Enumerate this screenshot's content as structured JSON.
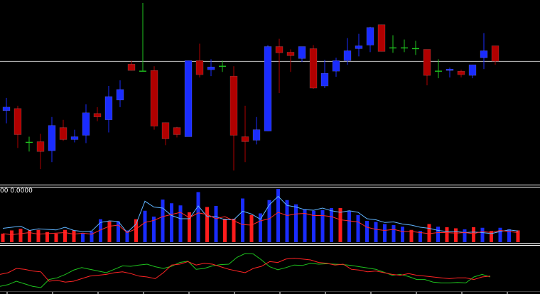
{
  "colors": {
    "background": "#000000",
    "bull": "#1a2cff",
    "bear": "#b00000",
    "doji": "#1fc41f",
    "bid_line": "#c8c8c8",
    "separator": "#ffffff",
    "hist_up": "#1a2cff",
    "hist_down": "#ff1c1c",
    "line_blue": "#5fb4ff",
    "line_red": "#ff2a2a",
    "osc_green": "#1ec21e",
    "osc_red": "#ff2424",
    "tick": "#ffffff"
  },
  "indicator": {
    "label": "00 0.0000"
  },
  "chart_data": [
    {
      "type": "candlestick",
      "price_range": [
        0,
        260
      ],
      "bid_line": 173,
      "candles": [
        {
          "o": 103,
          "h": 121,
          "l": 85,
          "c": 108,
          "dir": "bull"
        },
        {
          "o": 106,
          "h": 110,
          "l": 50,
          "c": 69,
          "dir": "bear"
        },
        {
          "o": 58,
          "h": 66,
          "l": 45,
          "c": 58,
          "dir": "doji"
        },
        {
          "o": 59,
          "h": 70,
          "l": 20,
          "c": 45,
          "dir": "bear"
        },
        {
          "o": 46,
          "h": 94,
          "l": 30,
          "c": 82,
          "dir": "bull"
        },
        {
          "o": 79,
          "h": 90,
          "l": 60,
          "c": 62,
          "dir": "bear"
        },
        {
          "o": 62,
          "h": 76,
          "l": 58,
          "c": 66,
          "dir": "bull"
        },
        {
          "o": 68,
          "h": 112,
          "l": 57,
          "c": 100,
          "dir": "bull"
        },
        {
          "o": 94,
          "h": 108,
          "l": 88,
          "c": 99,
          "dir": "bear"
        },
        {
          "o": 90,
          "h": 138,
          "l": 72,
          "c": 123,
          "dir": "bull"
        },
        {
          "o": 118,
          "h": 146,
          "l": 108,
          "c": 133,
          "dir": "bull"
        },
        {
          "o": 169,
          "h": 174,
          "l": 160,
          "c": 160,
          "dir": "bear"
        },
        {
          "o": 159,
          "h": 256,
          "l": 159,
          "c": 159,
          "dir": "doji"
        },
        {
          "o": 160,
          "h": 166,
          "l": 76,
          "c": 81,
          "dir": "bear"
        },
        {
          "o": 86,
          "h": 86,
          "l": 54,
          "c": 63,
          "dir": "bear"
        },
        {
          "o": 79,
          "h": 80,
          "l": 65,
          "c": 69,
          "dir": "bear"
        },
        {
          "o": 66,
          "h": 174,
          "l": 66,
          "c": 174,
          "dir": "bull"
        },
        {
          "o": 174,
          "h": 198,
          "l": 150,
          "c": 154,
          "dir": "bear"
        },
        {
          "o": 161,
          "h": 176,
          "l": 152,
          "c": 165,
          "dir": "bull"
        },
        {
          "o": 166,
          "h": 174,
          "l": 158,
          "c": 166,
          "dir": "doji"
        },
        {
          "o": 152,
          "h": 166,
          "l": 18,
          "c": 68,
          "dir": "bear"
        },
        {
          "o": 66,
          "h": 110,
          "l": 30,
          "c": 59,
          "dir": "bear"
        },
        {
          "o": 61,
          "h": 94,
          "l": 55,
          "c": 76,
          "dir": "bull"
        },
        {
          "o": 74,
          "h": 196,
          "l": 74,
          "c": 194,
          "dir": "bull"
        },
        {
          "o": 194,
          "h": 205,
          "l": 128,
          "c": 185,
          "dir": "bear"
        },
        {
          "o": 186,
          "h": 190,
          "l": 158,
          "c": 181,
          "dir": "bear"
        },
        {
          "o": 177,
          "h": 194,
          "l": 172,
          "c": 194,
          "dir": "bull"
        },
        {
          "o": 191,
          "h": 196,
          "l": 134,
          "c": 135,
          "dir": "bear"
        },
        {
          "o": 138,
          "h": 175,
          "l": 135,
          "c": 156,
          "dir": "bull"
        },
        {
          "o": 159,
          "h": 178,
          "l": 151,
          "c": 174,
          "dir": "bull"
        },
        {
          "o": 174,
          "h": 206,
          "l": 168,
          "c": 188,
          "dir": "bull"
        },
        {
          "o": 191,
          "h": 212,
          "l": 180,
          "c": 195,
          "dir": "bull"
        },
        {
          "o": 196,
          "h": 222,
          "l": 186,
          "c": 221,
          "dir": "bull"
        },
        {
          "o": 225,
          "h": 225,
          "l": 187,
          "c": 187,
          "dir": "bear"
        },
        {
          "o": 192,
          "h": 210,
          "l": 185,
          "c": 192,
          "dir": "doji"
        },
        {
          "o": 192,
          "h": 204,
          "l": 186,
          "c": 192,
          "dir": "doji"
        },
        {
          "o": 191,
          "h": 202,
          "l": 182,
          "c": 191,
          "dir": "doji"
        },
        {
          "o": 190,
          "h": 190,
          "l": 139,
          "c": 153,
          "dir": "bear"
        },
        {
          "o": 159,
          "h": 176,
          "l": 149,
          "c": 159,
          "dir": "doji"
        },
        {
          "o": 162,
          "h": 164,
          "l": 150,
          "c": 160,
          "dir": "bull"
        },
        {
          "o": 159,
          "h": 161,
          "l": 150,
          "c": 154,
          "dir": "bear"
        },
        {
          "o": 153,
          "h": 168,
          "l": 149,
          "c": 168,
          "dir": "bull"
        },
        {
          "o": 188,
          "h": 213,
          "l": 162,
          "c": 178,
          "dir": "bull"
        },
        {
          "o": 195,
          "h": 195,
          "l": 168,
          "c": 173,
          "dir": "bear"
        }
      ]
    },
    {
      "type": "bar",
      "ylim": [
        0,
        100
      ],
      "values": [
        16,
        22,
        25,
        22,
        23,
        19,
        16,
        23,
        22,
        16,
        20,
        43,
        39,
        39,
        22,
        43,
        59,
        48,
        80,
        73,
        69,
        56,
        94,
        66,
        68,
        44,
        44,
        82,
        51,
        54,
        79,
        100,
        79,
        71,
        62,
        59,
        60,
        64,
        64,
        58,
        51,
        40,
        38,
        34,
        32,
        29,
        23,
        21,
        34,
        29,
        28,
        26,
        24,
        28,
        27,
        21,
        27,
        24,
        22
      ],
      "dirs": [
        "bear",
        "bear",
        "bear",
        "bear",
        "bear",
        "bear",
        "bear",
        "bear",
        "bear",
        "bull",
        "bull",
        "bull",
        "bear",
        "bull",
        "bull",
        "bear",
        "bull",
        "bull",
        "bull",
        "bull",
        "bull",
        "bear",
        "bull",
        "bear",
        "bull",
        "bear",
        "bear",
        "bull",
        "bear",
        "bull",
        "bull",
        "bull",
        "bull",
        "bull",
        "bull",
        "bull",
        "bull",
        "bull",
        "bear",
        "bull",
        "bull",
        "bull",
        "bull",
        "bull",
        "bull",
        "bull",
        "bear",
        "bull",
        "bear",
        "bull",
        "bear",
        "bear",
        "bull",
        "bear",
        "bull",
        "bear",
        "bull",
        "bull",
        "bear"
      ],
      "series": [
        {
          "values": [
            26,
            28,
            30,
            22,
            25,
            24,
            23,
            28,
            22,
            20,
            21,
            37,
            40,
            39,
            18,
            34,
            77,
            66,
            64,
            50,
            44,
            44,
            68,
            48,
            48,
            42,
            42,
            58,
            53,
            43,
            70,
            86,
            69,
            66,
            61,
            60,
            64,
            59,
            56,
            59,
            56,
            44,
            42,
            37,
            38,
            34,
            32,
            28,
            26,
            22,
            20,
            20,
            18,
            19,
            18,
            16,
            20,
            23,
            21
          ]
        },
        {
          "values": [
            16,
            14,
            16,
            18,
            15,
            16,
            17,
            18,
            15,
            17,
            15,
            23,
            30,
            32,
            18,
            25,
            37,
            41,
            48,
            52,
            56,
            46,
            55,
            52,
            44,
            48,
            40,
            33,
            32,
            40,
            44,
            56,
            50,
            53,
            54,
            50,
            50,
            48,
            42,
            40,
            38,
            28,
            24,
            22,
            24,
            20,
            20,
            18,
            16,
            18,
            18,
            17,
            18,
            16,
            20,
            18,
            22,
            20,
            18
          ]
        }
      ]
    },
    {
      "type": "line",
      "ylim": [
        0,
        100
      ],
      "series": [
        {
          "values": [
            8,
            12,
            20,
            14,
            8,
            5,
            24,
            28,
            36,
            46,
            52,
            48,
            44,
            40,
            48,
            56,
            55,
            58,
            60,
            54,
            50,
            55,
            64,
            67,
            48,
            50,
            56,
            59,
            60,
            76,
            85,
            84,
            70,
            54,
            47,
            52,
            58,
            57,
            62,
            60,
            61,
            60,
            59,
            57,
            54,
            51,
            48,
            41,
            34,
            36,
            31,
            24,
            24,
            18,
            16,
            16,
            17,
            16,
            30,
            36,
            30
          ]
        },
        {
          "values": [
            36,
            40,
            50,
            48,
            44,
            42,
            20,
            22,
            18,
            20,
            26,
            32,
            34,
            36,
            40,
            42,
            38,
            32,
            30,
            26,
            40,
            58,
            60,
            66,
            58,
            62,
            60,
            54,
            48,
            44,
            40,
            50,
            55,
            66,
            64,
            72,
            74,
            72,
            70,
            64,
            62,
            58,
            60,
            48,
            46,
            42,
            44,
            40,
            36,
            34,
            38,
            34,
            32,
            30,
            28,
            26,
            28,
            28,
            24,
            30,
            32
          ]
        }
      ]
    }
  ]
}
